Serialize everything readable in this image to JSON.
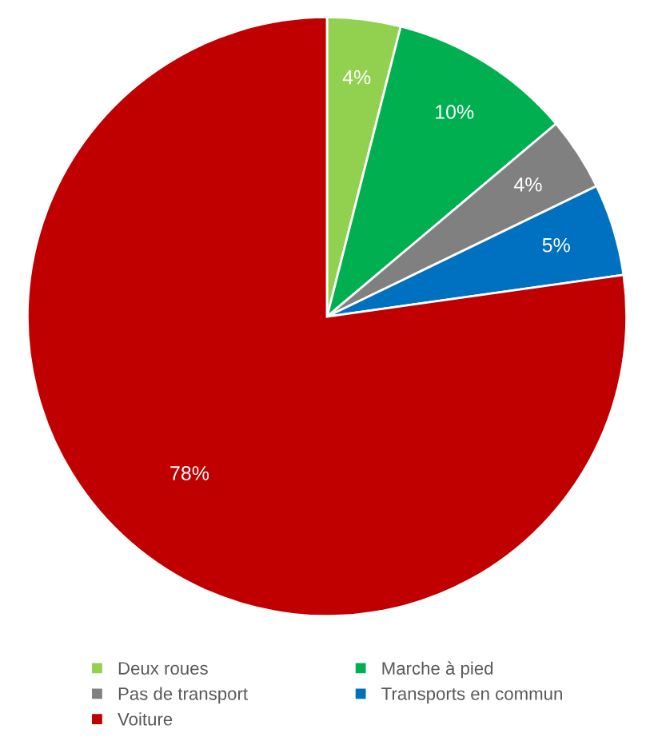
{
  "chart_data": {
    "type": "pie",
    "categories": [
      "Deux roues",
      "Marche à pied",
      "Pas de transport",
      "Transports en commun",
      "Voiture"
    ],
    "values": [
      4,
      10,
      4,
      5,
      78
    ],
    "colors": [
      "#92d050",
      "#00b050",
      "#808080",
      "#0070c0",
      "#c00000"
    ],
    "value_labels": [
      "4%",
      "10%",
      "4%",
      "5%",
      "78%"
    ],
    "legend": "bottom"
  }
}
